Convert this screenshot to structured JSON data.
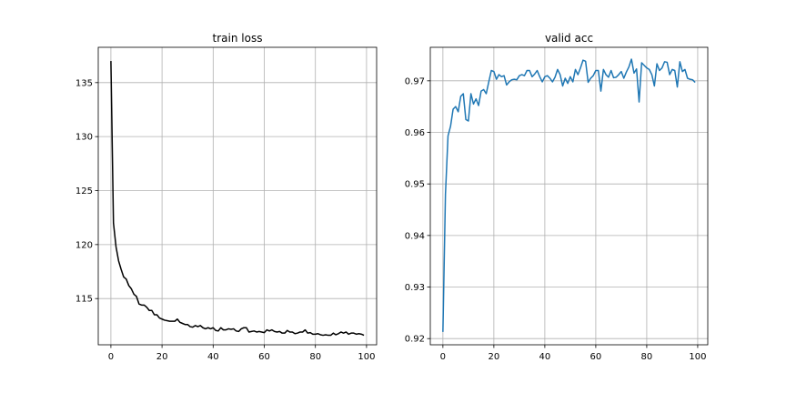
{
  "chart_data": [
    {
      "type": "line",
      "title": "train loss",
      "xlabel": "",
      "ylabel": "",
      "xlim": [
        -4.95,
        103.95
      ],
      "ylim": [
        110.72,
        138.27
      ],
      "grid": true,
      "xticks": [
        0,
        20,
        40,
        60,
        80,
        100
      ],
      "yticks": [
        115,
        120,
        125,
        130,
        135
      ],
      "xtick_labels": [
        "0",
        "20",
        "40",
        "60",
        "80",
        "100"
      ],
      "ytick_labels": [
        "115",
        "120",
        "125",
        "130",
        "135"
      ],
      "series": [
        {
          "color": "#000000",
          "x": [
            0,
            1,
            2,
            3,
            4,
            5,
            6,
            7,
            8,
            9,
            10,
            11,
            12,
            13,
            14,
            15,
            16,
            17,
            18,
            19,
            20,
            21,
            22,
            23,
            24,
            25,
            26,
            27,
            28,
            29,
            30,
            31,
            32,
            33,
            34,
            35,
            36,
            37,
            38,
            39,
            40,
            41,
            42,
            43,
            44,
            45,
            46,
            47,
            48,
            49,
            50,
            51,
            52,
            53,
            54,
            55,
            56,
            57,
            58,
            59,
            60,
            61,
            62,
            63,
            64,
            65,
            66,
            67,
            68,
            69,
            70,
            71,
            72,
            73,
            74,
            75,
            76,
            77,
            78,
            79,
            80,
            81,
            82,
            83,
            84,
            85,
            86,
            87,
            88,
            89,
            90,
            91,
            92,
            93,
            94,
            95,
            96,
            97,
            98,
            99
          ],
          "y": [
            137.0,
            122.0,
            119.8,
            118.5,
            117.7,
            117.0,
            116.8,
            116.2,
            115.9,
            115.4,
            115.2,
            114.5,
            114.4,
            114.4,
            114.2,
            113.9,
            113.9,
            113.5,
            113.5,
            113.2,
            113.1,
            113.0,
            112.95,
            112.9,
            112.9,
            112.9,
            113.1,
            112.8,
            112.7,
            112.6,
            112.6,
            112.4,
            112.35,
            112.5,
            112.4,
            112.5,
            112.3,
            112.2,
            112.3,
            112.2,
            112.3,
            112.05,
            112.0,
            112.3,
            112.1,
            112.1,
            112.2,
            112.15,
            112.2,
            112.0,
            111.95,
            112.2,
            112.3,
            112.3,
            111.9,
            111.95,
            112.0,
            111.9,
            111.95,
            111.9,
            111.85,
            112.1,
            112.0,
            112.1,
            111.95,
            111.9,
            111.95,
            111.8,
            111.8,
            112.05,
            111.9,
            111.9,
            111.75,
            111.8,
            111.9,
            111.9,
            112.1,
            111.8,
            111.85,
            111.7,
            111.7,
            111.75,
            111.65,
            111.6,
            111.65,
            111.6,
            111.6,
            111.8,
            111.65,
            111.75,
            111.9,
            111.8,
            111.9,
            111.7,
            111.8,
            111.8,
            111.7,
            111.75,
            111.7,
            111.6
          ]
        }
      ]
    },
    {
      "type": "line",
      "title": "valid acc",
      "xlabel": "",
      "ylabel": "",
      "xlim": [
        -4.95,
        103.95
      ],
      "ylim": [
        0.9188,
        0.9765
      ],
      "grid": true,
      "xticks": [
        0,
        20,
        40,
        60,
        80,
        100
      ],
      "yticks": [
        0.92,
        0.93,
        0.94,
        0.95,
        0.96,
        0.97
      ],
      "xtick_labels": [
        "0",
        "20",
        "40",
        "60",
        "80",
        "100"
      ],
      "ytick_labels": [
        "0.92",
        "0.93",
        "0.94",
        "0.95",
        "0.96",
        "0.97"
      ],
      "series": [
        {
          "color": "#1f77b4",
          "x": [
            0,
            1,
            2,
            3,
            4,
            5,
            6,
            7,
            8,
            9,
            10,
            11,
            12,
            13,
            14,
            15,
            16,
            17,
            18,
            19,
            20,
            21,
            22,
            23,
            24,
            25,
            26,
            27,
            28,
            29,
            30,
            31,
            32,
            33,
            34,
            35,
            36,
            37,
            38,
            39,
            40,
            41,
            42,
            43,
            44,
            45,
            46,
            47,
            48,
            49,
            50,
            51,
            52,
            53,
            54,
            55,
            56,
            57,
            58,
            59,
            60,
            61,
            62,
            63,
            64,
            65,
            66,
            67,
            68,
            69,
            70,
            71,
            72,
            73,
            74,
            75,
            76,
            77,
            78,
            79,
            80,
            81,
            82,
            83,
            84,
            85,
            86,
            87,
            88,
            89,
            90,
            91,
            92,
            93,
            94,
            95,
            96,
            97,
            98,
            99
          ],
          "y": [
            0.9213,
            0.948,
            0.9593,
            0.9612,
            0.9645,
            0.965,
            0.964,
            0.967,
            0.9675,
            0.9625,
            0.9622,
            0.9675,
            0.9655,
            0.9665,
            0.9652,
            0.968,
            0.9683,
            0.9675,
            0.9698,
            0.972,
            0.9718,
            0.9703,
            0.9712,
            0.9708,
            0.971,
            0.9692,
            0.9698,
            0.9702,
            0.9703,
            0.9702,
            0.971,
            0.9712,
            0.971,
            0.972,
            0.972,
            0.9708,
            0.9713,
            0.972,
            0.9708,
            0.9698,
            0.9708,
            0.971,
            0.9705,
            0.9698,
            0.9707,
            0.9722,
            0.9712,
            0.969,
            0.9705,
            0.9695,
            0.9708,
            0.9698,
            0.9722,
            0.9712,
            0.9725,
            0.974,
            0.9738,
            0.9697,
            0.9705,
            0.971,
            0.972,
            0.972,
            0.968,
            0.9722,
            0.9712,
            0.9707,
            0.972,
            0.9706,
            0.9707,
            0.9712,
            0.9718,
            0.9705,
            0.9717,
            0.9727,
            0.9742,
            0.9715,
            0.9723,
            0.9659,
            0.9735,
            0.973,
            0.9725,
            0.9722,
            0.9712,
            0.969,
            0.9733,
            0.972,
            0.9725,
            0.9737,
            0.9736,
            0.9712,
            0.9722,
            0.972,
            0.9688,
            0.9737,
            0.9718,
            0.9722,
            0.9705,
            0.9703,
            0.9702,
            0.9697
          ]
        }
      ]
    }
  ]
}
